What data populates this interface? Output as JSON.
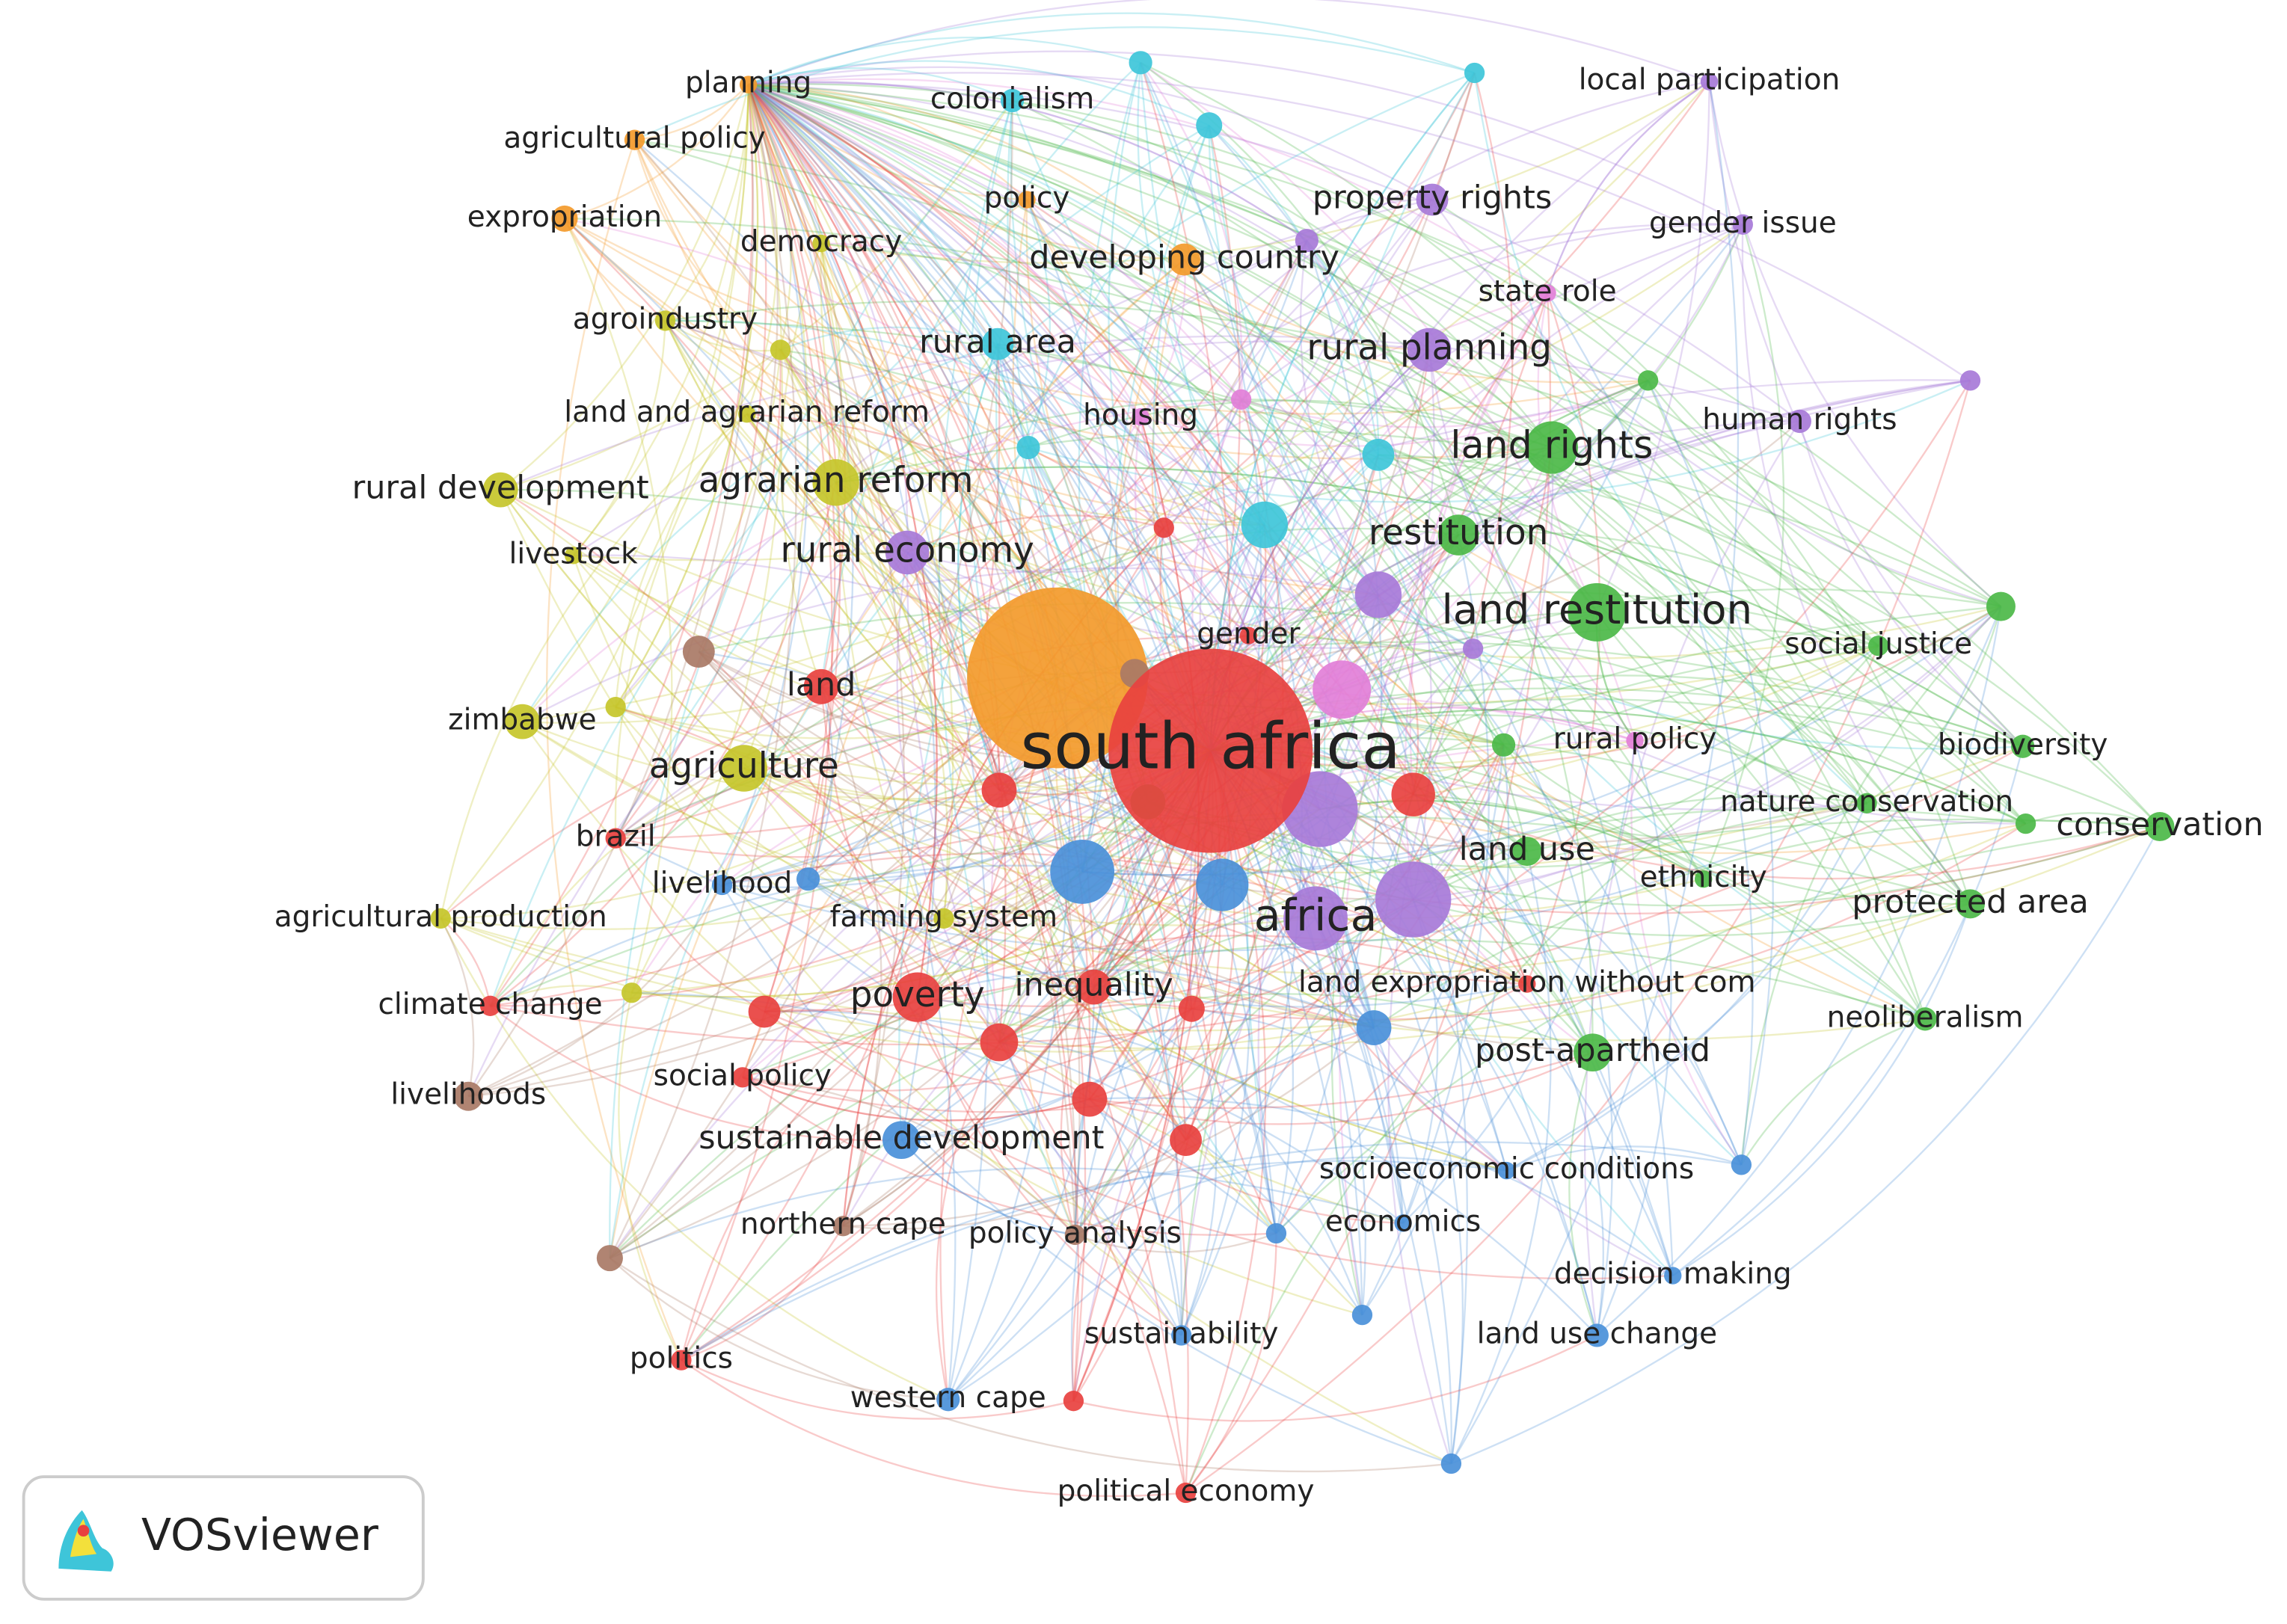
{
  "network": {
    "nodes": [
      {
        "label": "south africa"
      },
      {
        "label": "planning"
      },
      {
        "label": "agricultural policy"
      },
      {
        "label": "expropriation"
      },
      {
        "label": "democracy"
      },
      {
        "label": "agroindustry"
      },
      {
        "label": "land and agrarian reform"
      },
      {
        "label": "rural development"
      },
      {
        "label": "agrarian reform"
      },
      {
        "label": "livestock"
      },
      {
        "label": "zimbabwe"
      },
      {
        "label": "agriculture"
      },
      {
        "label": "land"
      },
      {
        "label": "brazil"
      },
      {
        "label": "livelihood"
      },
      {
        "label": "agricultural production"
      },
      {
        "label": "farming system"
      },
      {
        "label": "climate change"
      },
      {
        "label": "livelihoods"
      },
      {
        "label": "social policy"
      },
      {
        "label": "poverty"
      },
      {
        "label": "inequality"
      },
      {
        "label": "sustainable development"
      },
      {
        "label": "northern cape"
      },
      {
        "label": "policy analysis"
      },
      {
        "label": "politics"
      },
      {
        "label": "western cape"
      },
      {
        "label": "political economy"
      },
      {
        "label": "sustainability"
      },
      {
        "label": "economics"
      },
      {
        "label": "socioeconomic conditions"
      },
      {
        "label": "decision making"
      },
      {
        "label": "land use change"
      },
      {
        "label": "post-apartheid"
      },
      {
        "label": "land expropriation without com"
      },
      {
        "label": "neoliberalism"
      },
      {
        "label": "protected area"
      },
      {
        "label": "ethnicity"
      },
      {
        "label": "africa"
      },
      {
        "label": "land use"
      },
      {
        "label": "conservation"
      },
      {
        "label": "nature conservation"
      },
      {
        "label": "biodiversity"
      },
      {
        "label": "rural policy"
      },
      {
        "label": "social justice"
      },
      {
        "label": "land restitution"
      },
      {
        "label": "gender"
      },
      {
        "label": "restitution"
      },
      {
        "label": "land rights"
      },
      {
        "label": "human rights"
      },
      {
        "label": "rural planning"
      },
      {
        "label": "state role"
      },
      {
        "label": "gender issue"
      },
      {
        "label": "local participation"
      },
      {
        "label": "property rights"
      },
      {
        "label": "developing country"
      },
      {
        "label": "policy"
      },
      {
        "label": "colonialism"
      },
      {
        "label": "rural area"
      },
      {
        "label": "housing"
      },
      {
        "label": "rural economy"
      }
    ]
  },
  "logo": {
    "text": "VOSviewer"
  }
}
